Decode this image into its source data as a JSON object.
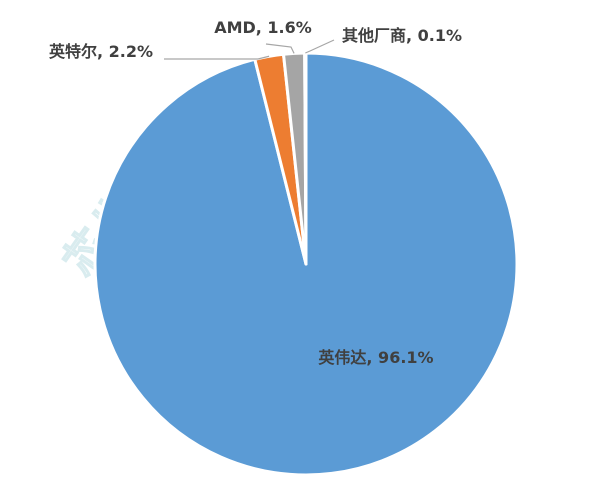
{
  "chart_data": {
    "type": "pie",
    "title": "",
    "slices": [
      {
        "label": "英伟达",
        "value": 96.1,
        "text": "英伟达, 96.1%",
        "color": "#5b9bd5"
      },
      {
        "label": "英特尔",
        "value": 2.2,
        "text": "英特尔, 2.2%",
        "color": "#ed7d31"
      },
      {
        "label": "AMD",
        "value": 1.6,
        "text": "AMD, 1.6%",
        "color": "#a5a5a5"
      },
      {
        "label": "其他厂商",
        "value": 0.1,
        "text": "其他厂商, 0.1%",
        "color": "#ffc000"
      }
    ],
    "slice_border_color": "#ffffff",
    "leader_line_color": "#a6a6a6"
  },
  "watermark": {
    "text": "芯八哥",
    "color": "#d9ecef"
  }
}
